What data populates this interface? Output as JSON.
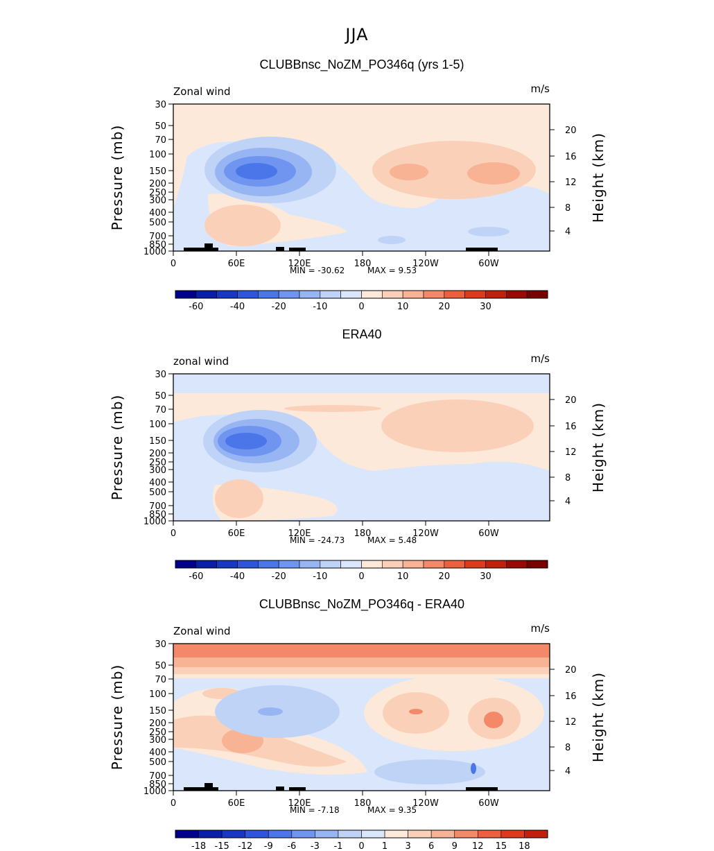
{
  "figure": {
    "season": "JJA"
  },
  "chart_data": [
    {
      "type": "heatmap",
      "title": "CLUBBnsc_NoZM_PO346q (yrs 1-5)",
      "left_label": "Zonal wind",
      "right_label": "m/s",
      "xlabel": "",
      "ylabel": "Pressure (mb)",
      "y2label": "Height (km)",
      "x_ticks": [
        "0",
        "60E",
        "120E",
        "180",
        "120W",
        "60W"
      ],
      "y_ticks": [
        "30",
        "50",
        "70",
        "100",
        "150",
        "200",
        "250",
        "300",
        "400",
        "500",
        "700",
        "850",
        "1000"
      ],
      "y2_ticks": [
        "20",
        "16",
        "12",
        "8",
        "4"
      ],
      "min_label": "MIN =  -30.62",
      "max_label": "MAX =    9.53",
      "min": -30.62,
      "max": 9.53,
      "colorbar_labels": [
        "-60",
        "-40",
        "-20",
        "-10",
        "0",
        "10",
        "20",
        "30"
      ],
      "colorbar_colors": [
        "#00008b",
        "#0a1fa8",
        "#1838c4",
        "#2f55dc",
        "#4a76ea",
        "#6f95f0",
        "#98b5f3",
        "#bfd3f7",
        "#d9e6fb",
        "#fde9d9",
        "#fbd0b8",
        "#f8b294",
        "#f4896a",
        "#ec5f3f",
        "#de3b1d",
        "#c0200c",
        "#9a0a05",
        "#780000"
      ],
      "features": {
        "jet_core_east": -30,
        "jet_core_west_lobe_a": 8,
        "jet_core_west_lobe_b": 9
      }
    },
    {
      "type": "heatmap",
      "title": "ERA40",
      "left_label": "zonal wind",
      "right_label": "m/s",
      "xlabel": "",
      "ylabel": "Pressure (mb)",
      "y2label": "Height (km)",
      "x_ticks": [
        "0",
        "60E",
        "120E",
        "180",
        "120W",
        "60W"
      ],
      "y_ticks": [
        "30",
        "50",
        "70",
        "100",
        "150",
        "200",
        "250",
        "300",
        "400",
        "500",
        "700",
        "850",
        "1000"
      ],
      "y2_ticks": [
        "20",
        "16",
        "12",
        "8",
        "4"
      ],
      "min_label": "MIN =  -24.73",
      "max_label": "MAX =    5.48",
      "min": -24.73,
      "max": 5.48,
      "colorbar_labels": [
        "-60",
        "-40",
        "-20",
        "-10",
        "0",
        "10",
        "20",
        "30"
      ],
      "colorbar_colors": [
        "#00008b",
        "#0a1fa8",
        "#1838c4",
        "#2f55dc",
        "#4a76ea",
        "#6f95f0",
        "#98b5f3",
        "#bfd3f7",
        "#d9e6fb",
        "#fde9d9",
        "#fbd0b8",
        "#f8b294",
        "#f4896a",
        "#ec5f3f",
        "#de3b1d",
        "#c0200c",
        "#9a0a05",
        "#780000"
      ]
    },
    {
      "type": "heatmap",
      "title": "CLUBBnsc_NoZM_PO346q - ERA40",
      "left_label": "Zonal wind",
      "right_label": "m/s",
      "xlabel": "",
      "ylabel": "Pressure (mb)",
      "y2label": "Height (km)",
      "x_ticks": [
        "0",
        "60E",
        "120E",
        "180",
        "120W",
        "60W"
      ],
      "y_ticks": [
        "30",
        "50",
        "70",
        "100",
        "150",
        "200",
        "250",
        "300",
        "400",
        "500",
        "700",
        "850",
        "1000"
      ],
      "y2_ticks": [
        "20",
        "16",
        "12",
        "8",
        "4"
      ],
      "min_label": "MIN =   -7.18",
      "max_label": "MAX =    9.35",
      "min": -7.18,
      "max": 9.35,
      "colorbar_labels": [
        "-18",
        "-15",
        "-12",
        "-9",
        "-6",
        "-3",
        "-1",
        "0",
        "1",
        "3",
        "6",
        "9",
        "12",
        "15",
        "18"
      ],
      "colorbar_colors": [
        "#00008b",
        "#0a1fa8",
        "#1838c4",
        "#2f55dc",
        "#4a76ea",
        "#6f95f0",
        "#98b5f3",
        "#bfd3f7",
        "#d9e6fb",
        "#fde9d9",
        "#fbd0b8",
        "#f8b294",
        "#f4896a",
        "#ec5f3f",
        "#de3b1d",
        "#c0200c"
      ]
    }
  ]
}
